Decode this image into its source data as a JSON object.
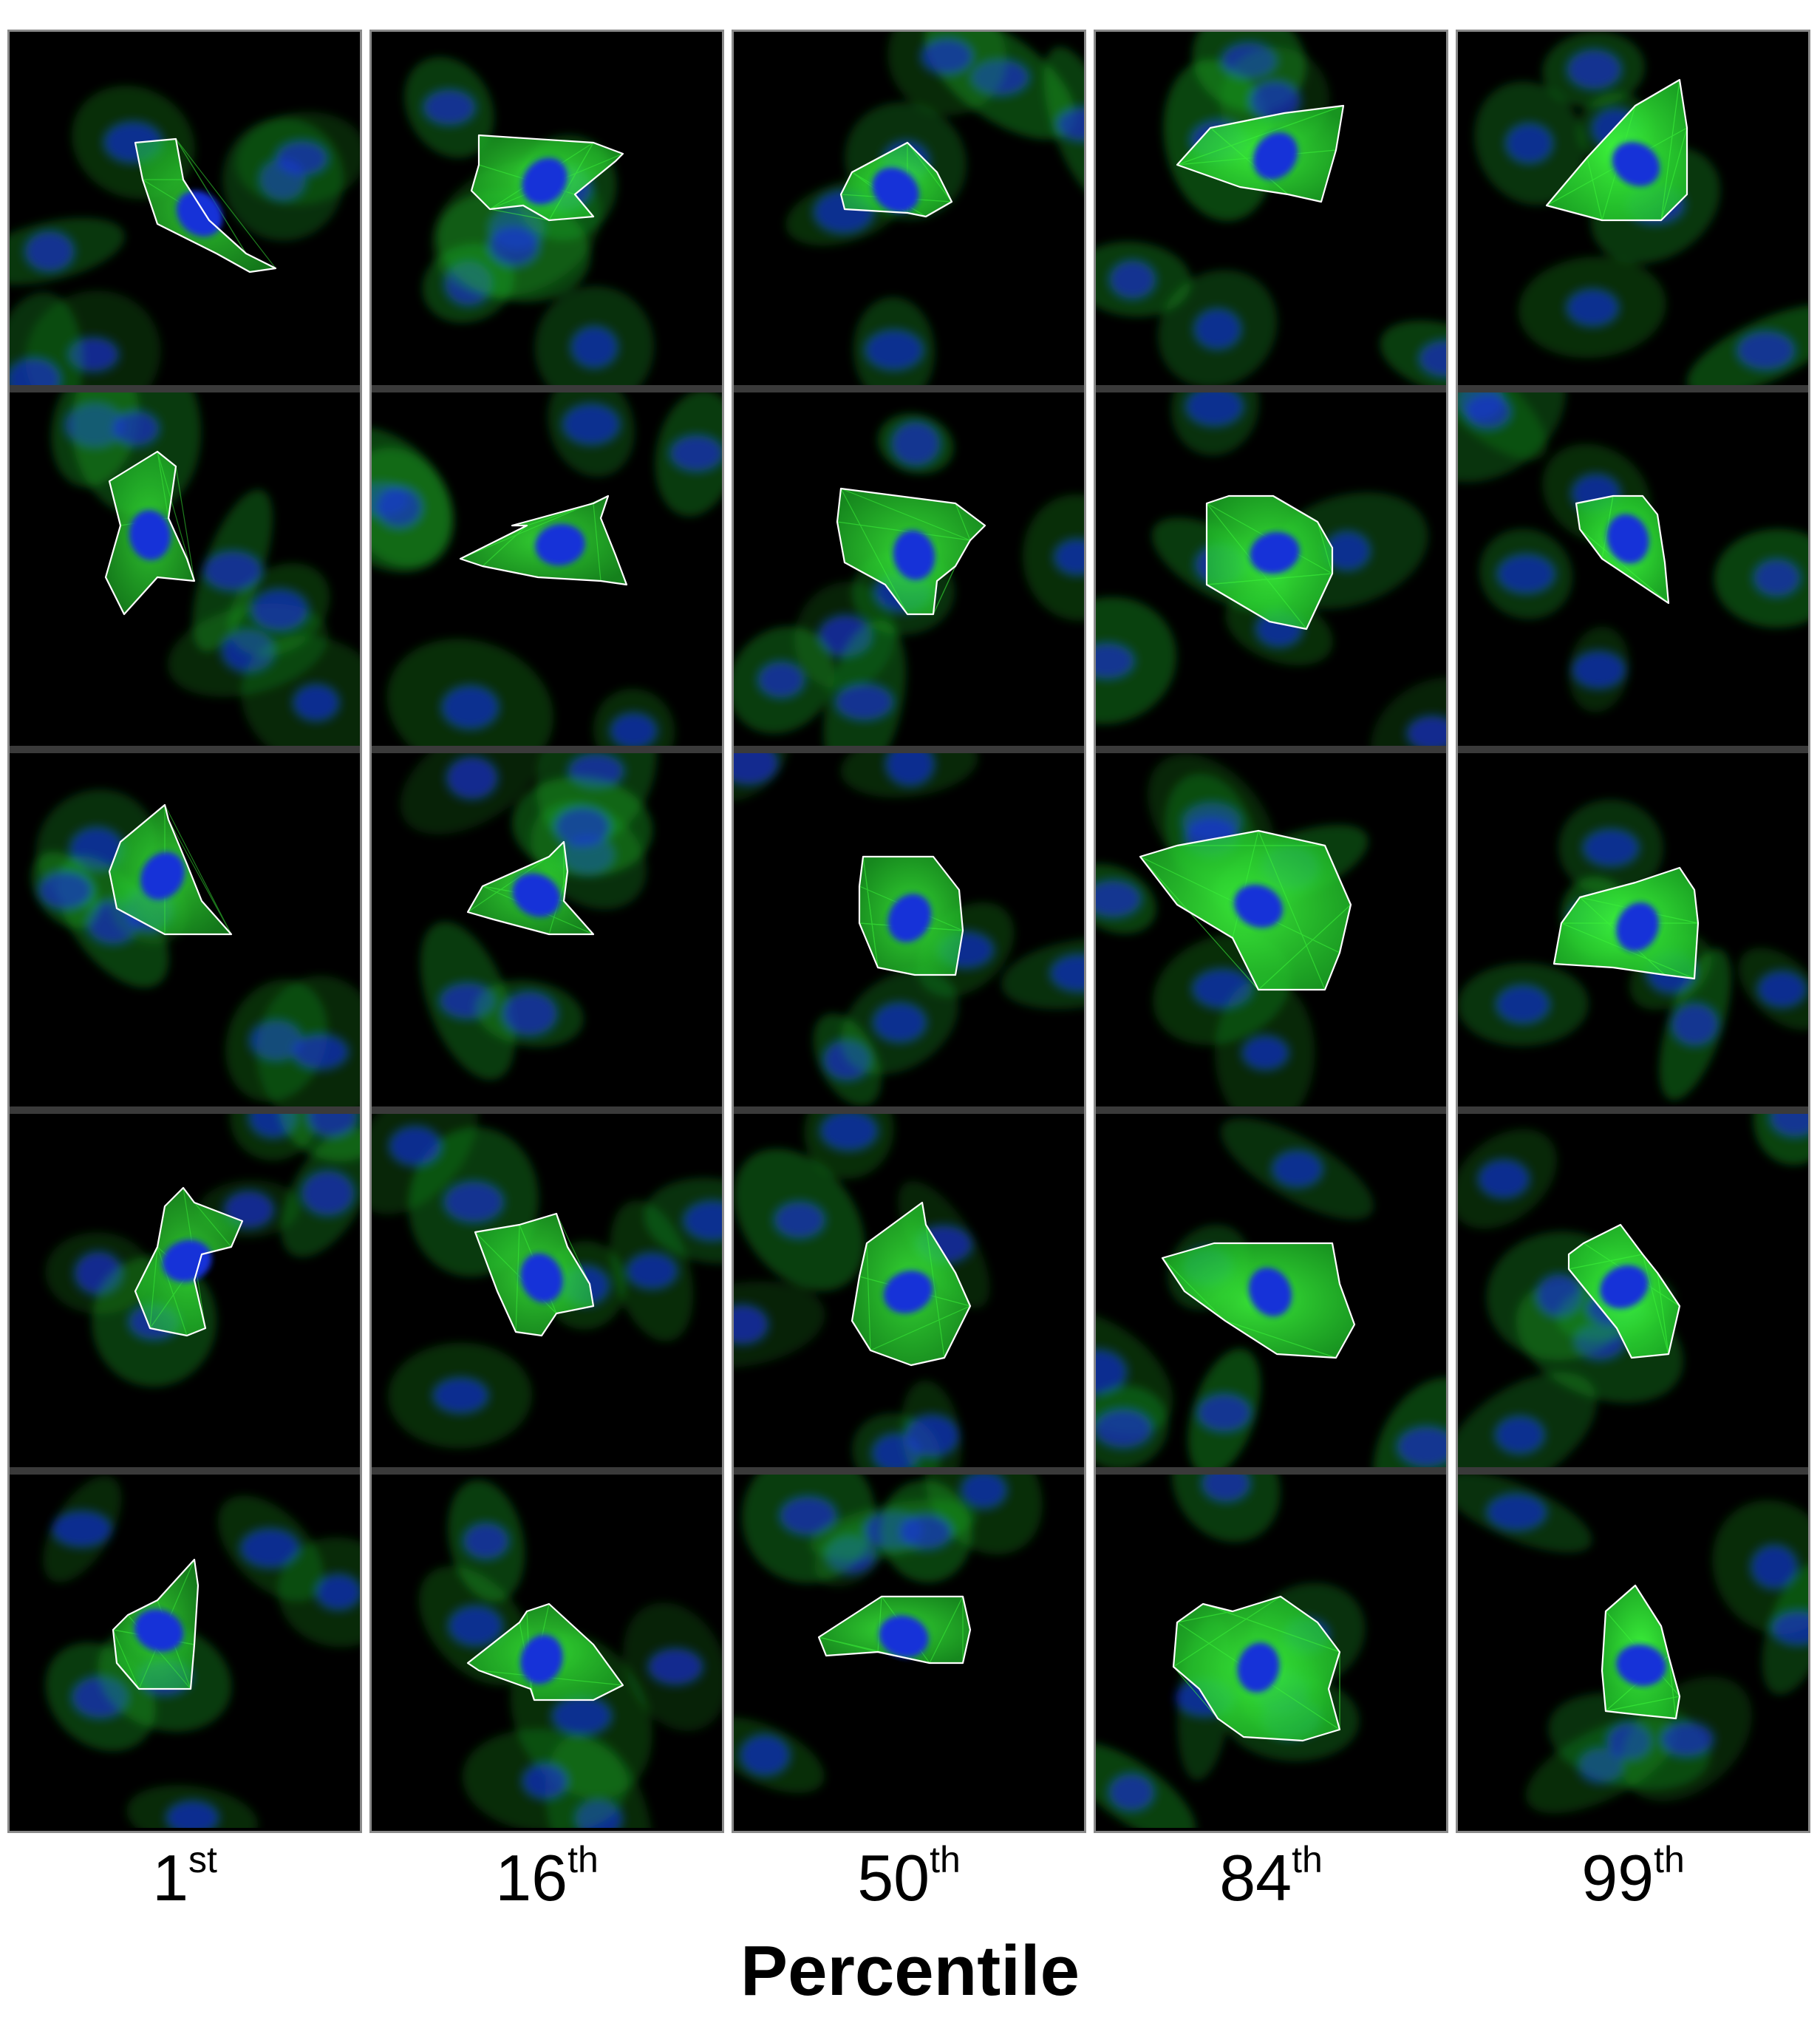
{
  "axis_title": "Percentile",
  "colors": {
    "background": "#000000",
    "actin": "#1fbf2a",
    "actin_bright": "#3cf23a",
    "nucleus": "#1530d8",
    "outline": "#ffffff",
    "panel_border": "#8a8a8a",
    "row_separator": "#3a3a3a"
  },
  "columns": [
    {
      "number": "1",
      "suffix": "st",
      "intensity": 0.55
    },
    {
      "number": "16",
      "suffix": "th",
      "intensity": 0.65
    },
    {
      "number": "50",
      "suffix": "th",
      "intensity": 0.72
    },
    {
      "number": "84",
      "suffix": "th",
      "intensity": 0.85
    },
    {
      "number": "99",
      "suffix": "th",
      "intensity": 1.0
    }
  ],
  "rows_per_column": 5,
  "tile_content": "fluorescence micrograph: green actin cytoskeleton, blue nuclei, one cell outlined in white"
}
